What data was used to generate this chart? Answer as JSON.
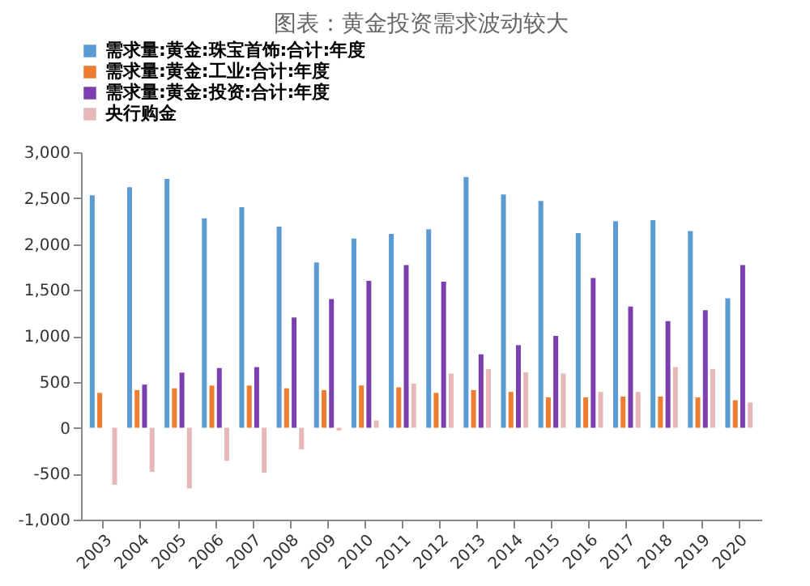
{
  "chart_data": {
    "type": "bar",
    "title": "图表：黄金投资需求波动较大",
    "categories": [
      "2003",
      "2004",
      "2005",
      "2006",
      "2007",
      "2008",
      "2009",
      "2010",
      "2011",
      "2012",
      "2013",
      "2014",
      "2015",
      "2016",
      "2017",
      "2018",
      "2019",
      "2020"
    ],
    "series": [
      {
        "name": "需求量:黄金:珠宝首饰:合计:年度",
        "color": "#5b9bd5",
        "values": [
          2530,
          2620,
          2710,
          2280,
          2400,
          2190,
          1800,
          2060,
          2110,
          2160,
          2730,
          2540,
          2470,
          2120,
          2250,
          2260,
          2140,
          1410
        ]
      },
      {
        "name": "需求量:黄金:工业:合计:年度",
        "color": "#ed7d31",
        "values": [
          380,
          410,
          430,
          460,
          460,
          430,
          410,
          460,
          440,
          380,
          410,
          390,
          330,
          330,
          340,
          340,
          330,
          300
        ]
      },
      {
        "name": "需求量:黄金:投资:合计:年度",
        "color": "#7b3fb0",
        "values": [
          null,
          470,
          600,
          650,
          660,
          1200,
          1400,
          1600,
          1770,
          1590,
          800,
          900,
          1000,
          1630,
          1320,
          1160,
          1280,
          1770
        ]
      },
      {
        "name": "央行购金",
        "color": "#e6b8b7",
        "values": [
          -620,
          -480,
          -660,
          -360,
          -490,
          -235,
          -30,
          80,
          480,
          590,
          640,
          605,
          590,
          390,
          390,
          660,
          640,
          276
        ]
      }
    ],
    "ylim": [
      -1000,
      3000
    ],
    "yticks": [
      {
        "value": -1000,
        "label": "-1,000"
      },
      -500,
      0,
      500,
      {
        "value": 1000,
        "label": "1,000"
      },
      {
        "value": 1500,
        "label": "1,500"
      },
      {
        "value": 2000,
        "label": "2,000"
      },
      {
        "value": 2500,
        "label": "2,500"
      },
      {
        "value": 3000,
        "label": "3,000"
      }
    ],
    "grid": false,
    "legend": "top"
  }
}
